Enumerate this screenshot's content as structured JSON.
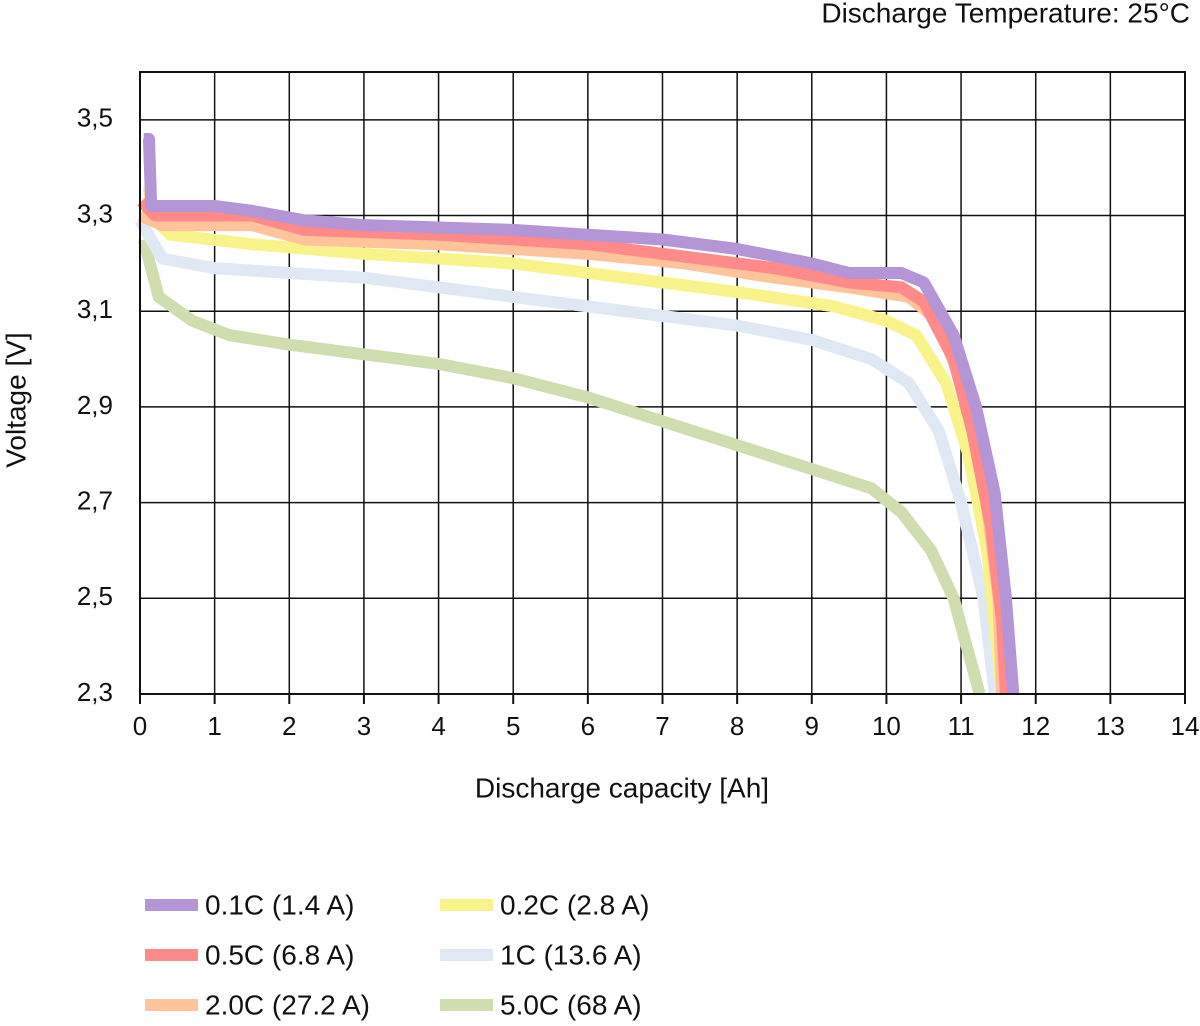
{
  "chart_data": {
    "type": "line",
    "title": "Discharge Temperature: 25°C",
    "x_label": "Discharge capacity [Ah]",
    "y_label": "Voltage [V]",
    "xlim": [
      0,
      14
    ],
    "ylim": [
      2.3,
      3.6
    ],
    "xticks": [
      0,
      1,
      2,
      3,
      4,
      5,
      6,
      7,
      8,
      9,
      10,
      11,
      12,
      13,
      14
    ],
    "yticks": [
      {
        "value": 2.3,
        "label": "2,3"
      },
      {
        "value": 2.5,
        "label": "2,5"
      },
      {
        "value": 2.7,
        "label": "2,7"
      },
      {
        "value": 2.9,
        "label": "2,9"
      },
      {
        "value": 3.1,
        "label": "3,1"
      },
      {
        "value": 3.3,
        "label": "3,3"
      },
      {
        "value": 3.5,
        "label": "3,5"
      }
    ],
    "grid": true,
    "legend": "bottom",
    "series": [
      {
        "name": "0.1C (1.4 A)",
        "color": "#b496d6",
        "x": [
          0.05,
          0.12,
          0.15,
          0.3,
          1.0,
          1.5,
          2.2,
          3,
          5,
          6,
          7,
          8,
          9,
          9.5,
          10.2,
          10.5,
          10.9,
          11.2,
          11.45,
          11.6,
          11.7
        ],
        "values": [
          3.46,
          3.46,
          3.32,
          3.32,
          3.32,
          3.31,
          3.29,
          3.28,
          3.27,
          3.26,
          3.25,
          3.23,
          3.2,
          3.18,
          3.18,
          3.16,
          3.05,
          2.9,
          2.72,
          2.5,
          2.3
        ]
      },
      {
        "name": "0.5C (6.8 A)",
        "color": "#ff8a8a",
        "x": [
          0.02,
          0.2,
          1.5,
          2.2,
          4,
          6,
          7,
          8.5,
          9.5,
          10.2,
          10.5,
          10.9,
          11.15,
          11.4,
          11.55,
          11.6
        ],
        "values": [
          3.33,
          3.3,
          3.3,
          3.27,
          3.26,
          3.24,
          3.22,
          3.19,
          3.16,
          3.15,
          3.12,
          3.0,
          2.85,
          2.65,
          2.45,
          2.3
        ]
      },
      {
        "name": "2.0C (27.2 A)",
        "color": "#ffc49c",
        "x": [
          0,
          0.3,
          1.5,
          2.2,
          4,
          6,
          7.3,
          8.5,
          9.5,
          10.3,
          10.7,
          11,
          11.3,
          11.5,
          11.55
        ],
        "values": [
          3.3,
          3.28,
          3.28,
          3.25,
          3.24,
          3.22,
          3.2,
          3.17,
          3.15,
          3.13,
          3.08,
          2.95,
          2.75,
          2.5,
          2.3
        ]
      },
      {
        "name": "0.2C (2.8 A)",
        "color": "#f9f38c",
        "x": [
          0.12,
          0.15,
          0.4,
          1.5,
          3,
          5,
          6.5,
          8,
          9.3,
          10,
          10.4,
          10.8,
          11.1,
          11.35,
          11.55
        ],
        "values": [
          3.36,
          3.3,
          3.26,
          3.24,
          3.22,
          3.2,
          3.17,
          3.14,
          3.11,
          3.08,
          3.05,
          2.95,
          2.8,
          2.6,
          2.3
        ]
      },
      {
        "name": "1C (13.6 A)",
        "color": "#e0e9f3",
        "x": [
          0,
          0.3,
          1,
          2,
          3,
          4,
          5,
          6,
          7,
          8,
          9,
          9.8,
          10.3,
          10.7,
          11,
          11.3,
          11.45
        ],
        "values": [
          3.29,
          3.21,
          3.19,
          3.18,
          3.17,
          3.15,
          3.13,
          3.11,
          3.09,
          3.07,
          3.04,
          3.0,
          2.95,
          2.85,
          2.7,
          2.5,
          2.3
        ]
      },
      {
        "name": "5.0C (68 A)",
        "color": "#d0ddb0",
        "x": [
          0.05,
          0.25,
          0.7,
          1.2,
          2,
          3,
          4,
          5,
          6,
          7,
          8,
          9,
          9.8,
          10.2,
          10.6,
          10.9,
          11.25
        ],
        "values": [
          3.25,
          3.13,
          3.08,
          3.05,
          3.03,
          3.01,
          2.99,
          2.96,
          2.92,
          2.87,
          2.82,
          2.77,
          2.73,
          2.68,
          2.6,
          2.5,
          2.3
        ]
      }
    ]
  }
}
